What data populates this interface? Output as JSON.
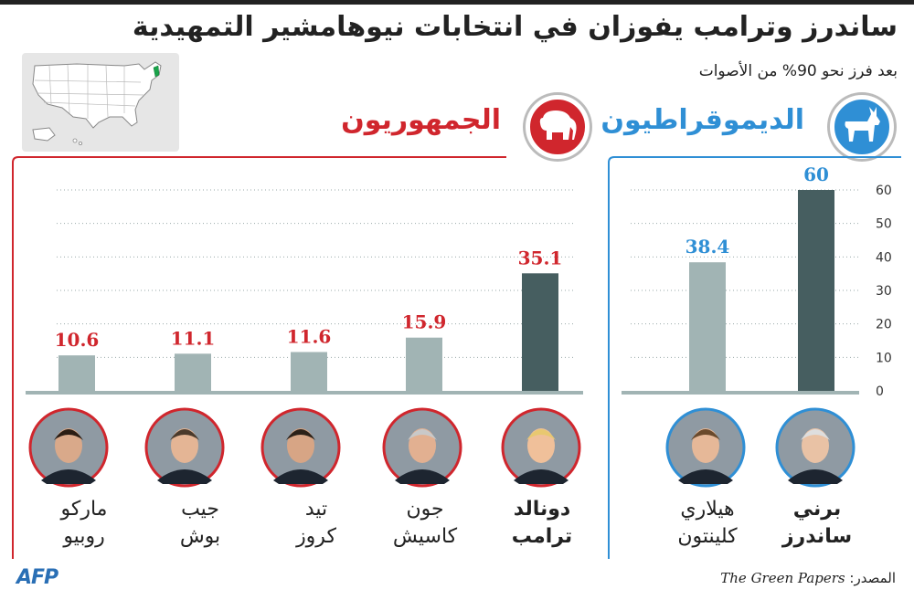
{
  "title": "ساندرز وترامب يفوزان في انتخابات نيوهامشير التمهيدية",
  "subtitle": "بعد فرز نحو 90% من الأصوات",
  "source": {
    "label": "المصدر:",
    "name": "The Green Papers"
  },
  "logo": "AFP",
  "colors": {
    "republican": "#d0262d",
    "democrat": "#2f8fd5",
    "winner_bar": "#465e60",
    "bar": "#a1b4b4"
  },
  "map_icon": "usa-map-new-hampshire-highlighted",
  "chart_data": [
    {
      "type": "bar",
      "title": "الجمهوريون",
      "icon": "elephant-icon",
      "categories": [
        "ماركو روبيو",
        "جيب بوش",
        "تيد كروز",
        "جون كاسيش",
        "دونالد ترامب"
      ],
      "values": [
        10.6,
        11.1,
        11.6,
        15.9,
        35.1
      ],
      "ylim": [
        0,
        60
      ],
      "grid": true
    },
    {
      "type": "bar",
      "title": "الديموقراطيون",
      "icon": "donkey-icon",
      "categories": [
        "هيلاري كلينتون",
        "برني ساندرز"
      ],
      "values": [
        38.4,
        60
      ],
      "ylim": [
        0,
        60
      ],
      "yticks": [
        0,
        10,
        20,
        30,
        40,
        50,
        60
      ],
      "grid": true
    }
  ],
  "candidates": {
    "rep": [
      {
        "line1": "ماركو",
        "line2": "روبيو"
      },
      {
        "line1": "جيب",
        "line2": "بوش"
      },
      {
        "line1": "تيد",
        "line2": "كروز"
      },
      {
        "line1": "جون",
        "line2": "كاسيش"
      },
      {
        "line1": "دونالد",
        "line2": "ترامب"
      }
    ],
    "dem": [
      {
        "line1": "هيلاري",
        "line2": "كلينتون"
      },
      {
        "line1": "برني",
        "line2": "ساندرز"
      }
    ]
  }
}
